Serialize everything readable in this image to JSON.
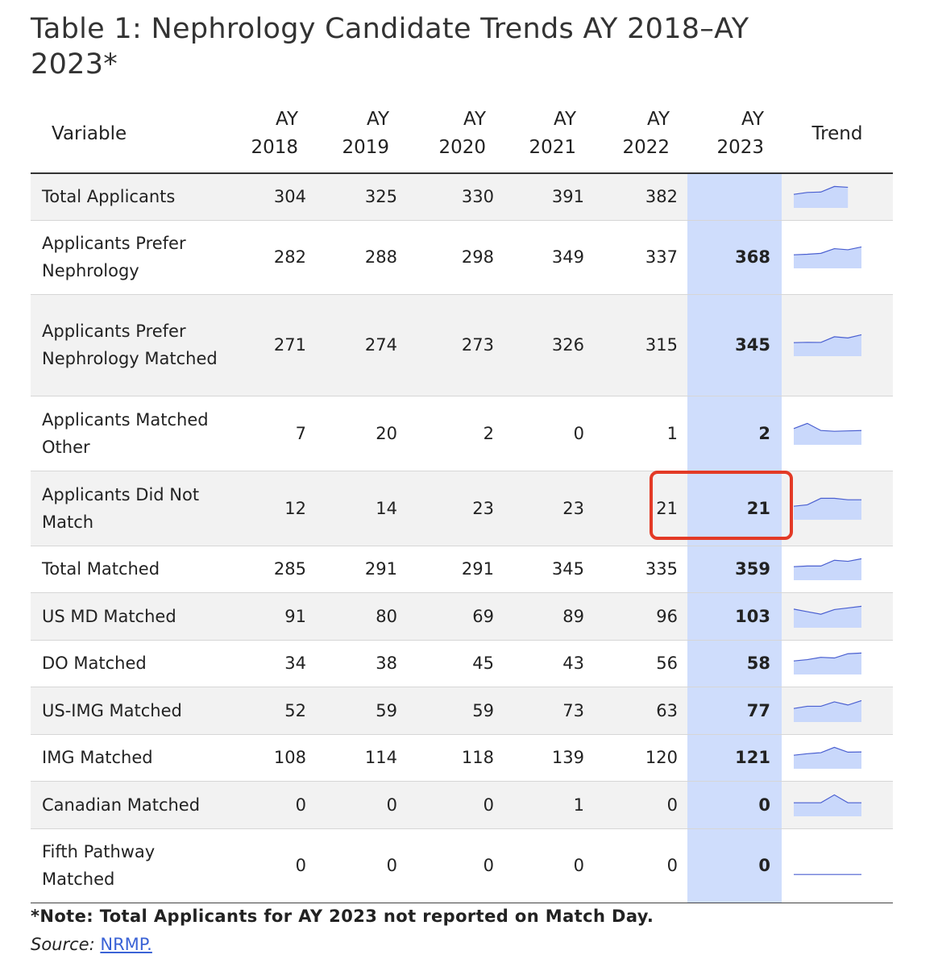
{
  "title": "Table 1: Nephrology Candidate Trends AY 2018–AY 2023*",
  "columns": {
    "variable": "Variable",
    "years": [
      [
        "AY",
        "2018"
      ],
      [
        "AY",
        "2019"
      ],
      [
        "AY",
        "2020"
      ],
      [
        "AY",
        "2021"
      ],
      [
        "AY",
        "2022"
      ],
      [
        "AY",
        "2023"
      ]
    ],
    "trend": "Trend"
  },
  "rows": [
    {
      "label": "Total Applicants",
      "values": [
        "304",
        "325",
        "330",
        "391",
        "382",
        ""
      ]
    },
    {
      "label": "Applicants Prefer Nephrology",
      "values": [
        "282",
        "288",
        "298",
        "349",
        "337",
        "368"
      ]
    },
    {
      "label": "Applicants Prefer Nephrology Matched",
      "values": [
        "271",
        "274",
        "273",
        "326",
        "315",
        "345"
      ]
    },
    {
      "label": "Applicants Matched Other",
      "values": [
        "7",
        "20",
        "2",
        "0",
        "1",
        "2"
      ]
    },
    {
      "label": "Applicants Did Not Match",
      "values": [
        "12",
        "14",
        "23",
        "23",
        "21",
        "21"
      ]
    },
    {
      "label": "Total Matched",
      "values": [
        "285",
        "291",
        "291",
        "345",
        "335",
        "359"
      ]
    },
    {
      "label": "US MD Matched",
      "values": [
        "91",
        "80",
        "69",
        "89",
        "96",
        "103"
      ]
    },
    {
      "label": "DO Matched",
      "values": [
        "34",
        "38",
        "45",
        "43",
        "56",
        "58"
      ]
    },
    {
      "label": "US-IMG Matched",
      "values": [
        "52",
        "59",
        "59",
        "73",
        "63",
        "77"
      ]
    },
    {
      "label": "IMG Matched",
      "values": [
        "108",
        "114",
        "118",
        "139",
        "120",
        "121"
      ]
    },
    {
      "label": "Canadian Matched",
      "values": [
        "0",
        "0",
        "0",
        "1",
        "0",
        "0"
      ]
    },
    {
      "label": "Fifth Pathway Matched",
      "values": [
        "0",
        "0",
        "0",
        "0",
        "0",
        "0"
      ]
    }
  ],
  "note": "*Note: Total Applicants for AY 2023 not reported on Match Day.",
  "source_label": "Source:",
  "source_link": "NRMP.",
  "colors": {
    "highlight_column": "#cfddfc",
    "sparkline_stroke": "#4a5fd0",
    "sparkline_fill": "#c9d8fb",
    "annotation_circle": "#e33a26"
  }
}
